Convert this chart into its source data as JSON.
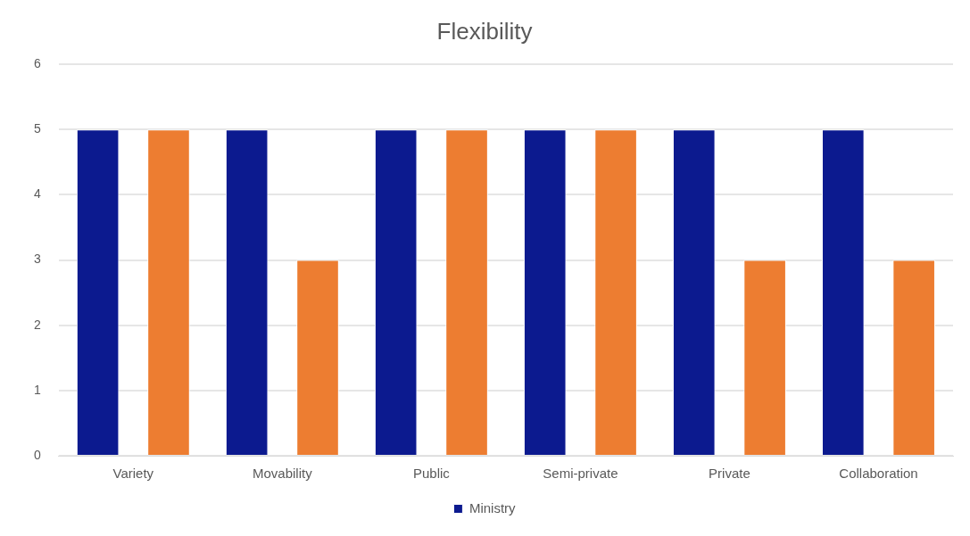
{
  "chart_data": {
    "type": "bar",
    "title": "Flexibility",
    "categories": [
      "Variety",
      "Movability",
      "Public",
      "Semi-private",
      "Private",
      "Collaboration"
    ],
    "series": [
      {
        "name": "Ministry",
        "color": "#0c1a8f",
        "values": [
          5,
          5,
          5,
          5,
          5,
          5
        ]
      },
      {
        "color": "#ed7d31",
        "values": [
          5,
          3,
          5,
          5,
          3,
          3
        ]
      }
    ],
    "ylim": [
      0,
      6
    ],
    "yticks": [
      0,
      1,
      2,
      3,
      4,
      5,
      6
    ],
    "grid": "y",
    "legend": "bottom"
  }
}
